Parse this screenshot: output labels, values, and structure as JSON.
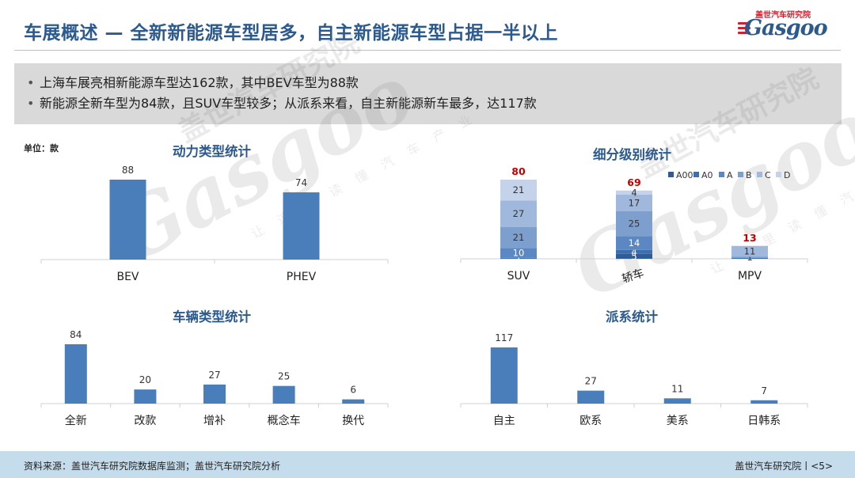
{
  "header": {
    "title": "车展概述 — 全新新能源车型居多，自主新能源车型占据一半以上",
    "logo_cn": "盖世汽车研究院",
    "logo_en": "Gasgoo"
  },
  "summary": {
    "bullets": [
      "上海车展亮相新能源车型达162款，其中BEV车型为88款",
      "新能源全新车型为84款，且SUV车型较多；从派系来看，自主新能源新车最多，达117款"
    ]
  },
  "unit_label": "单位：款",
  "watermark": {
    "en": "Gasgoo",
    "cn": "盖世汽车研究院",
    "sub": "让 这 里 读 懂 汽 车 产 业"
  },
  "colors": {
    "bar": "#4a7ebb",
    "title": "#2c5a8e",
    "red": "#c00000"
  },
  "chart_data": [
    {
      "id": "power",
      "type": "bar",
      "title": "动力类型统计",
      "categories": [
        "BEV",
        "PHEV"
      ],
      "values": [
        88,
        74
      ]
    },
    {
      "id": "segment",
      "type": "bar",
      "stacked": true,
      "title": "细分级别统计",
      "categories": [
        "SUV",
        "轿车",
        "MPV"
      ],
      "totals": [
        80,
        69,
        13
      ],
      "legend": [
        "A00",
        "A0",
        "A",
        "B",
        "C",
        "D"
      ],
      "legend_colors": [
        "#2e5c96",
        "#3d6fae",
        "#5b87c2",
        "#7d9fce",
        "#a0b8dc",
        "#c4d2ea"
      ],
      "series": [
        {
          "name": "A00",
          "values": [
            null,
            5,
            null
          ]
        },
        {
          "name": "A0",
          "values": [
            1,
            4,
            1
          ]
        },
        {
          "name": "A",
          "values": [
            10,
            14,
            null
          ]
        },
        {
          "name": "B",
          "values": [
            21,
            25,
            1
          ]
        },
        {
          "name": "C",
          "values": [
            27,
            17,
            11
          ]
        },
        {
          "name": "D",
          "values": [
            21,
            4,
            null
          ]
        }
      ]
    },
    {
      "id": "vehicle",
      "type": "bar",
      "title": "车辆类型统计",
      "categories": [
        "全新",
        "改款",
        "增补",
        "概念车",
        "换代"
      ],
      "values": [
        84,
        20,
        27,
        25,
        6
      ]
    },
    {
      "id": "origin",
      "type": "bar",
      "title": "派系统计",
      "categories": [
        "自主",
        "欧系",
        "美系",
        "日韩系"
      ],
      "values": [
        117,
        27,
        11,
        7
      ]
    }
  ],
  "footer": {
    "source": "资料来源：盖世汽车研究院数据库监测；盖世汽车研究院分析",
    "page": "盖世汽车研究院丨<5>"
  }
}
